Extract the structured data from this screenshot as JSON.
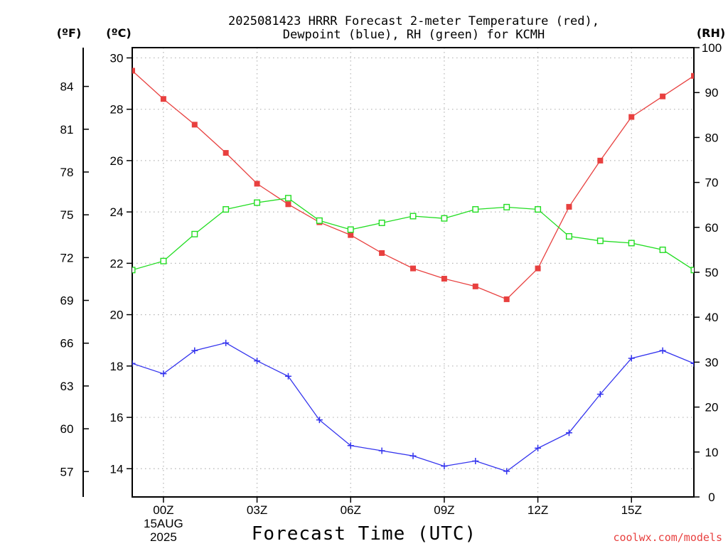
{
  "chart_data": {
    "type": "line",
    "title_line1": "2025081423 HRRR Forecast 2-meter Temperature (red),",
    "title_line2": "Dewpoint (blue), RH (green) for KCMH",
    "units": {
      "fahrenheit": "(ºF)",
      "celsius": "(ºC)",
      "rh": "(RH)"
    },
    "xlabel": "Forecast Time (UTC)",
    "credit": "coolwx.com/models",
    "x_hours": [
      -1,
      0,
      1,
      2,
      3,
      4,
      5,
      6,
      7,
      8,
      9,
      10,
      11,
      12,
      13,
      14,
      15,
      16,
      17
    ],
    "xlim": [
      -1,
      17
    ],
    "x_ticks": [
      {
        "hour": 0,
        "label": "00Z",
        "line2": "15AUG",
        "line3": "2025"
      },
      {
        "hour": 3,
        "label": "03Z"
      },
      {
        "hour": 6,
        "label": "06Z"
      },
      {
        "hour": 9,
        "label": "09Z"
      },
      {
        "hour": 12,
        "label": "12Z"
      },
      {
        "hour": 15,
        "label": "15Z"
      }
    ],
    "celsius_axis": {
      "ylim": [
        12.9,
        30.4
      ],
      "ticks": [
        14,
        16,
        18,
        20,
        22,
        24,
        26,
        28,
        30
      ]
    },
    "fahrenheit_ticks": [
      57,
      60,
      63,
      66,
      69,
      72,
      75,
      78,
      81,
      84
    ],
    "rh_axis": {
      "ylim": [
        0,
        100
      ],
      "ticks": [
        0,
        10,
        20,
        30,
        40,
        50,
        60,
        70,
        80,
        90,
        100
      ]
    },
    "series": [
      {
        "name": "Temperature",
        "color": "#e8403f",
        "marker": "filled-square",
        "axis": "celsius",
        "values": [
          29.5,
          28.4,
          27.4,
          26.3,
          25.1,
          24.3,
          23.6,
          23.1,
          22.4,
          21.8,
          21.4,
          21.1,
          20.6,
          21.8,
          24.2,
          26.0,
          27.7,
          28.5,
          29.3
        ]
      },
      {
        "name": "Dewpoint",
        "color": "#3333ee",
        "marker": "plus",
        "axis": "celsius",
        "values": [
          18.1,
          17.7,
          18.6,
          18.9,
          18.2,
          17.6,
          15.9,
          14.9,
          14.7,
          14.5,
          14.1,
          14.3,
          13.9,
          14.8,
          15.4,
          16.9,
          18.3,
          18.6,
          18.1
        ]
      },
      {
        "name": "RH",
        "color": "#22dd22",
        "marker": "open-square",
        "axis": "rh",
        "values": [
          50.5,
          52.5,
          58.5,
          64.0,
          65.5,
          66.5,
          61.5,
          59.5,
          61.0,
          62.5,
          62.0,
          64.0,
          64.5,
          64.0,
          58.0,
          57.0,
          56.5,
          55.0,
          50.5
        ]
      }
    ],
    "grid": true
  }
}
